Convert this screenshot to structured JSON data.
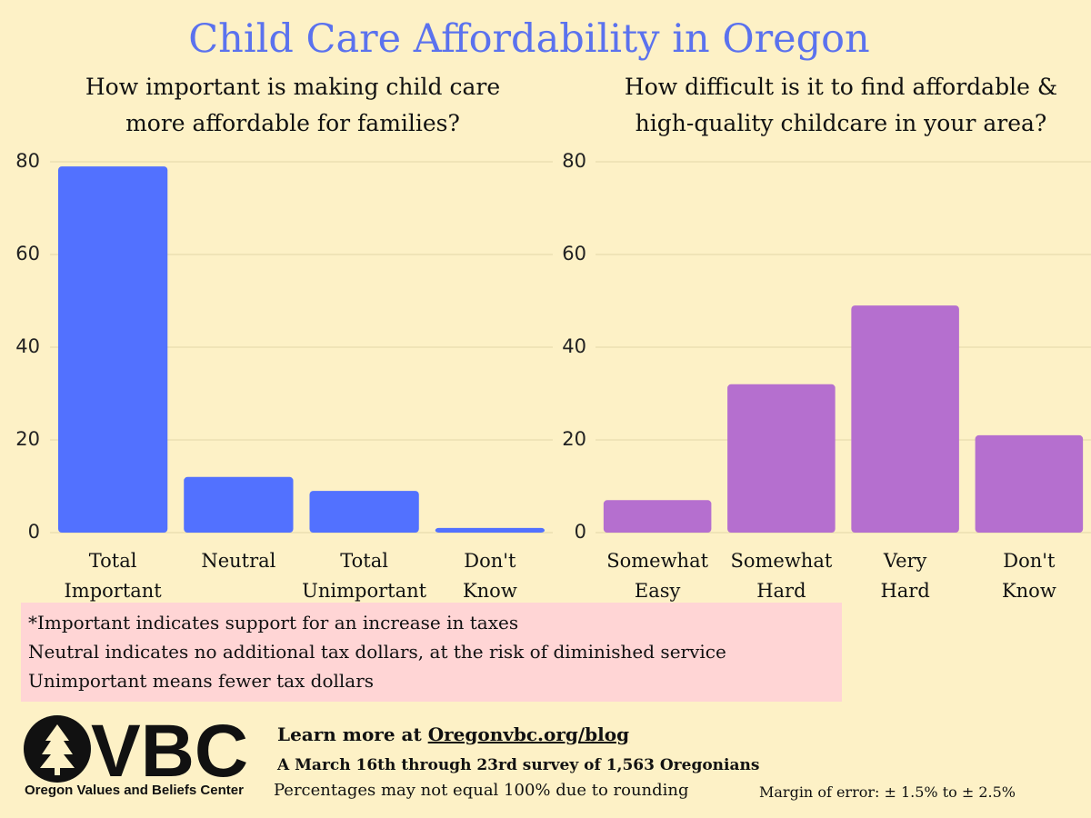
{
  "title": "Child Care Affordability in Oregon",
  "chart_data": [
    {
      "type": "bar",
      "title": [
        "How important is making child care",
        "more affordable for families?"
      ],
      "categories": [
        "Total Important",
        "Neutral",
        "Total Unimportant",
        "Don't Know"
      ],
      "values": [
        79,
        12,
        9,
        1
      ],
      "color": "#5271ff",
      "ylim": [
        0,
        80
      ],
      "yticks": [
        0,
        20,
        40,
        60,
        80
      ],
      "grid": true
    },
    {
      "type": "bar",
      "title": [
        "How difficult is it to find affordable &",
        "high-quality childcare in your area?"
      ],
      "categories": [
        "Somewhat Easy",
        "Somewhat Hard",
        "Very Hard",
        "Don't Know"
      ],
      "values": [
        7,
        32,
        49,
        21
      ],
      "color": "#b56fcf",
      "ylim": [
        0,
        80
      ],
      "yticks": [
        0,
        20,
        40,
        60,
        80
      ],
      "grid": true
    }
  ],
  "notes": [
    "*Important indicates support for an increase in taxes",
    "Neutral indicates no additional tax dollars, at the risk of diminished service",
    "Unimportant means fewer tax dollars"
  ],
  "logo": {
    "text": "VBC",
    "name": "Oregon Values and Beliefs Center"
  },
  "footer": {
    "learn_more": "Learn more at",
    "link": "Oregonvbc.org/blog",
    "survey": "A March 16th through 23rd survey of 1,563 Oregonians",
    "rounding": "Percentages may not equal  100% due to rounding",
    "margin": "Margin of error: ± 1.5% to ± 2.5%"
  }
}
